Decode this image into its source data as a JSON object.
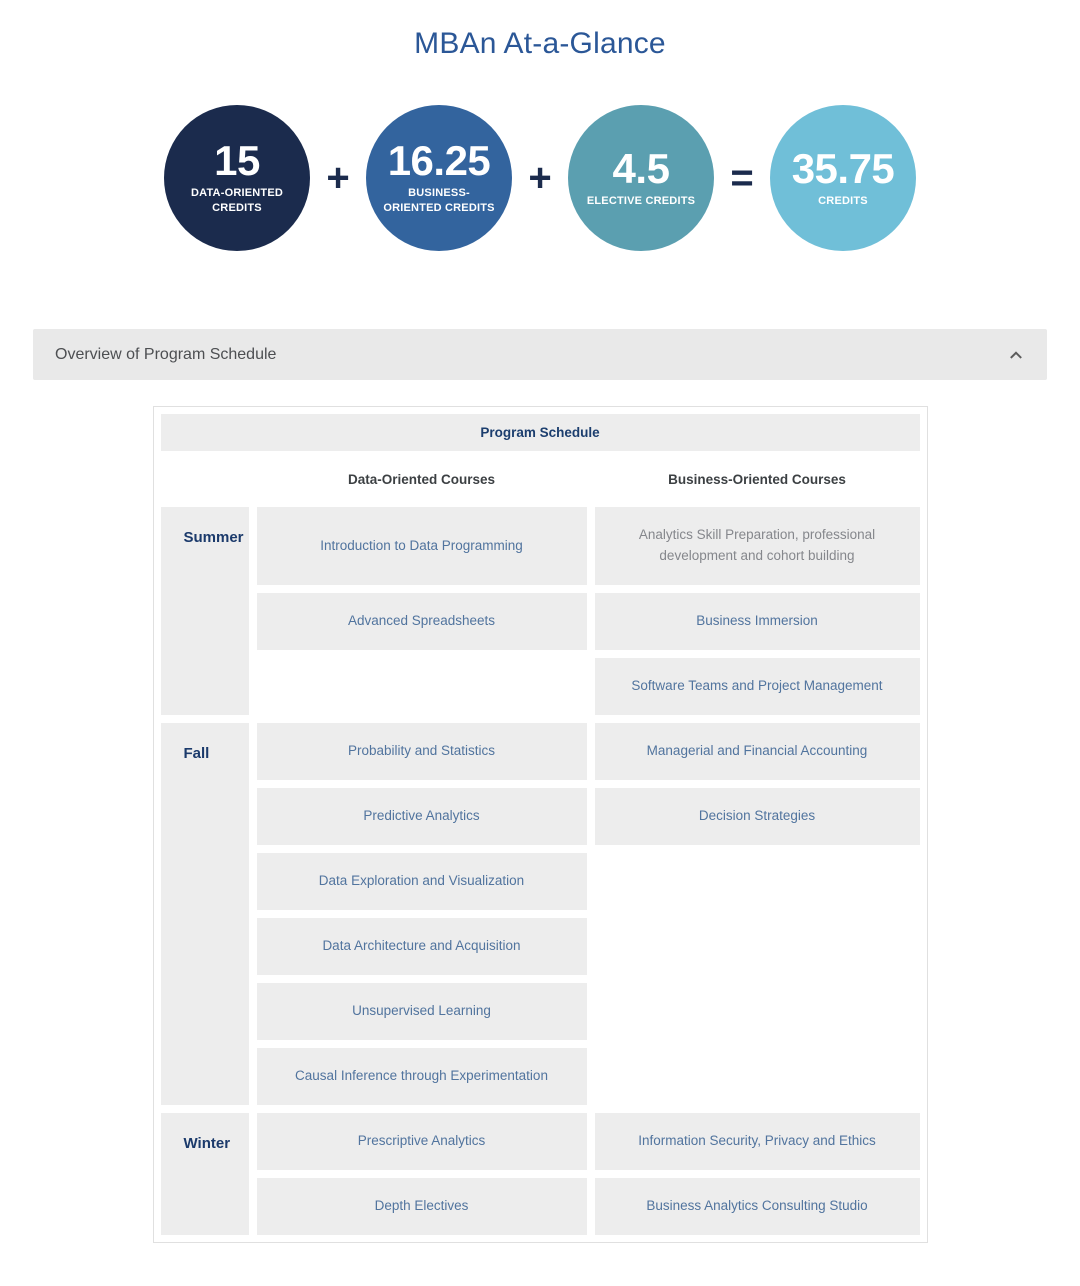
{
  "title": "MBAn At-a-Glance",
  "credits": {
    "items": [
      {
        "value": "15",
        "label": "DATA-ORIENTED CREDITS",
        "color": "#1b2b4d"
      },
      {
        "value": "16.25",
        "label": "BUSINESS-ORIENTED CREDITS",
        "color": "#33649e"
      },
      {
        "value": "4.5",
        "label": "ELECTIVE CREDITS",
        "color": "#5b9fb0"
      },
      {
        "value": "35.75",
        "label": "CREDITS",
        "color": "#70bfd8"
      }
    ],
    "operators": [
      "+",
      "+",
      "="
    ]
  },
  "accordion": {
    "title": "Overview of Program Schedule",
    "chevron_icon": "chevron-up-icon",
    "expanded": true
  },
  "schedule": {
    "title": "Program Schedule",
    "columns": [
      "Data-Oriented Courses",
      "Business-Oriented Courses"
    ],
    "sections": [
      {
        "season": "Summer",
        "rows": [
          {
            "data": "Introduction to Data Programming",
            "business": "Analytics Skill Preparation, professional development and cohort building",
            "business_muted": true,
            "tall": true
          },
          {
            "data": "Advanced Spreadsheets",
            "business": "Business Immersion"
          },
          {
            "data": "",
            "business": "Software Teams and Project Management"
          }
        ]
      },
      {
        "season": "Fall",
        "rows": [
          {
            "data": "Probability and Statistics",
            "business": "Managerial and Financial Accounting"
          },
          {
            "data": "Predictive Analytics",
            "business": "Decision Strategies"
          },
          {
            "data": "Data Exploration and Visualization",
            "business": ""
          },
          {
            "data": "Data Architecture and Acquisition",
            "business": ""
          },
          {
            "data": "Unsupervised Learning",
            "business": ""
          },
          {
            "data": "Causal Inference through Experimentation",
            "business": ""
          }
        ]
      },
      {
        "season": "Winter",
        "rows": [
          {
            "data": "Prescriptive Analytics",
            "business": "Information Security, Privacy and Ethics"
          },
          {
            "data": "Depth Electives",
            "business": "Business Analytics Consulting Studio"
          }
        ]
      }
    ]
  },
  "colors": {
    "title": "#2b5797",
    "operator": "#1b2b4d",
    "accordion_bg": "#e9e9e9",
    "cell_bg": "#ededed",
    "navy_text": "#1c3e6e",
    "course_link": "#51749e",
    "muted_text": "#85878c"
  }
}
